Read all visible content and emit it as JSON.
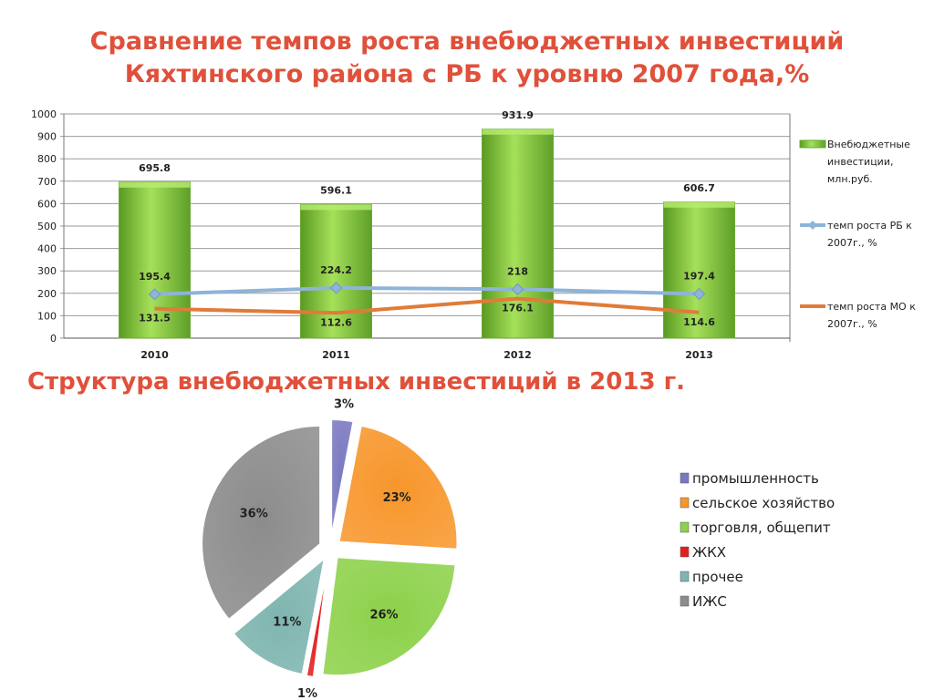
{
  "slide": {
    "title_line1": "Сравнение темпов роста внебюджетных инвестиций",
    "title_line2": "Кяхтинского района с РБ к уровню 2007 года,%",
    "section_title": "Структура внебюджетных инвестиций  в 2013 г."
  },
  "chart_data": [
    {
      "type": "bar",
      "categories": [
        "2010",
        "2011",
        "2012",
        "2013"
      ],
      "ylim": [
        0,
        1000
      ],
      "yticks": [
        0,
        100,
        200,
        300,
        400,
        500,
        600,
        700,
        800,
        900,
        1000
      ],
      "grid": true,
      "legend_position": "right",
      "series": [
        {
          "name": "Внебюджетные инвестиции, млн.руб.",
          "type": "bar",
          "values": [
            695.8,
            596.1,
            931.9,
            606.7
          ],
          "labels": [
            "695.8",
            "596.1",
            "931.9",
            "606.7"
          ],
          "color": "#7fc241"
        },
        {
          "name": "темп роста РБ к 2007г., %",
          "type": "line",
          "values": [
            195.4,
            224.2,
            218,
            197.4
          ],
          "labels": [
            "195.4",
            "224.2",
            "218",
            "197.4"
          ],
          "color": "#8eb4d8",
          "marker": "diamond"
        },
        {
          "name": "темп роста МО к 2007г., %",
          "type": "line",
          "values": [
            131.5,
            112.6,
            176.1,
            114.6
          ],
          "labels": [
            "131.5",
            "112.6",
            "176.1",
            "114.6"
          ],
          "color": "#e07b39"
        }
      ]
    },
    {
      "type": "pie",
      "legend_position": "right",
      "slices": [
        {
          "name": "промышленность",
          "value": 3,
          "label": "3%",
          "color": "#7a78c0"
        },
        {
          "name": "сельское хозяйство",
          "value": 23,
          "label": "23%",
          "color": "#f7962b"
        },
        {
          "name": "торговля, общепит",
          "value": 26,
          "label": "26%",
          "color": "#8cd14a"
        },
        {
          "name": "ЖКХ",
          "value": 1,
          "label": "1%",
          "color": "#e41e1e"
        },
        {
          "name": "прочее",
          "value": 11,
          "label": "11%",
          "color": "#7fb5b0"
        },
        {
          "name": "ИЖС",
          "value": 36,
          "label": "36%",
          "color": "#8c8c8c"
        }
      ]
    }
  ]
}
